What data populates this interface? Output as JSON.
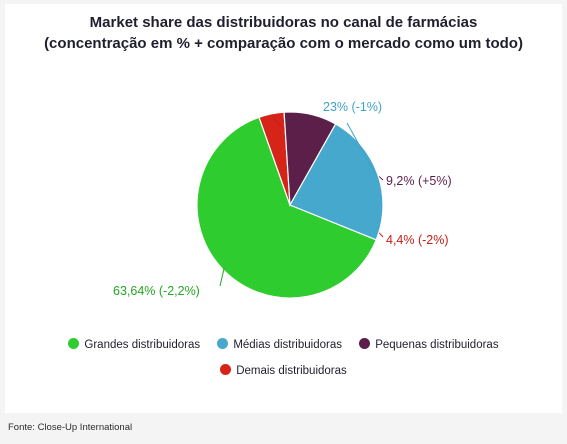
{
  "title_line1": "Market share das distribuidoras no canal de farmácias",
  "title_line2": "(concentração em % + comparação com o mercado como um todo)",
  "source": "Fonte: Close-Up International",
  "chart_data": {
    "type": "pie",
    "title": "Market share das distribuidoras no canal de farmácias (concentração em % + comparação com o mercado como um todo)",
    "legend_placement": "bottom",
    "slices": [
      {
        "name": "Grandes distribuidoras",
        "value": 63.64,
        "label": "63,64% (-2,2%)",
        "color": "#2ecc2e"
      },
      {
        "name": "Demais distribuidoras",
        "value": 4.4,
        "label": "4,4% (-2%)",
        "color": "#d62418"
      },
      {
        "name": "Pequenas distribuidoras",
        "value": 9.2,
        "label": "9,2% (+5%)",
        "color": "#5b1f4a"
      },
      {
        "name": "Médias distribuidoras",
        "value": 23,
        "label": "23% (-1%)",
        "color": "#46a8cc"
      }
    ],
    "label_colors": {
      "Grandes distribuidoras": "#22a822",
      "Demais distribuidoras": "#c42016",
      "Pequenas distribuidoras": "#5b1f4a",
      "Médias distribuidoras": "#3ea3c8"
    }
  },
  "legend": [
    {
      "label": "Grandes distribuidoras",
      "color": "#2ecc2e"
    },
    {
      "label": "Médias distribuidoras",
      "color": "#46a8cc"
    },
    {
      "label": "Pequenas distribuidoras",
      "color": "#5b1f4a"
    },
    {
      "label": "Demais distribuidoras",
      "color": "#d62418"
    }
  ]
}
